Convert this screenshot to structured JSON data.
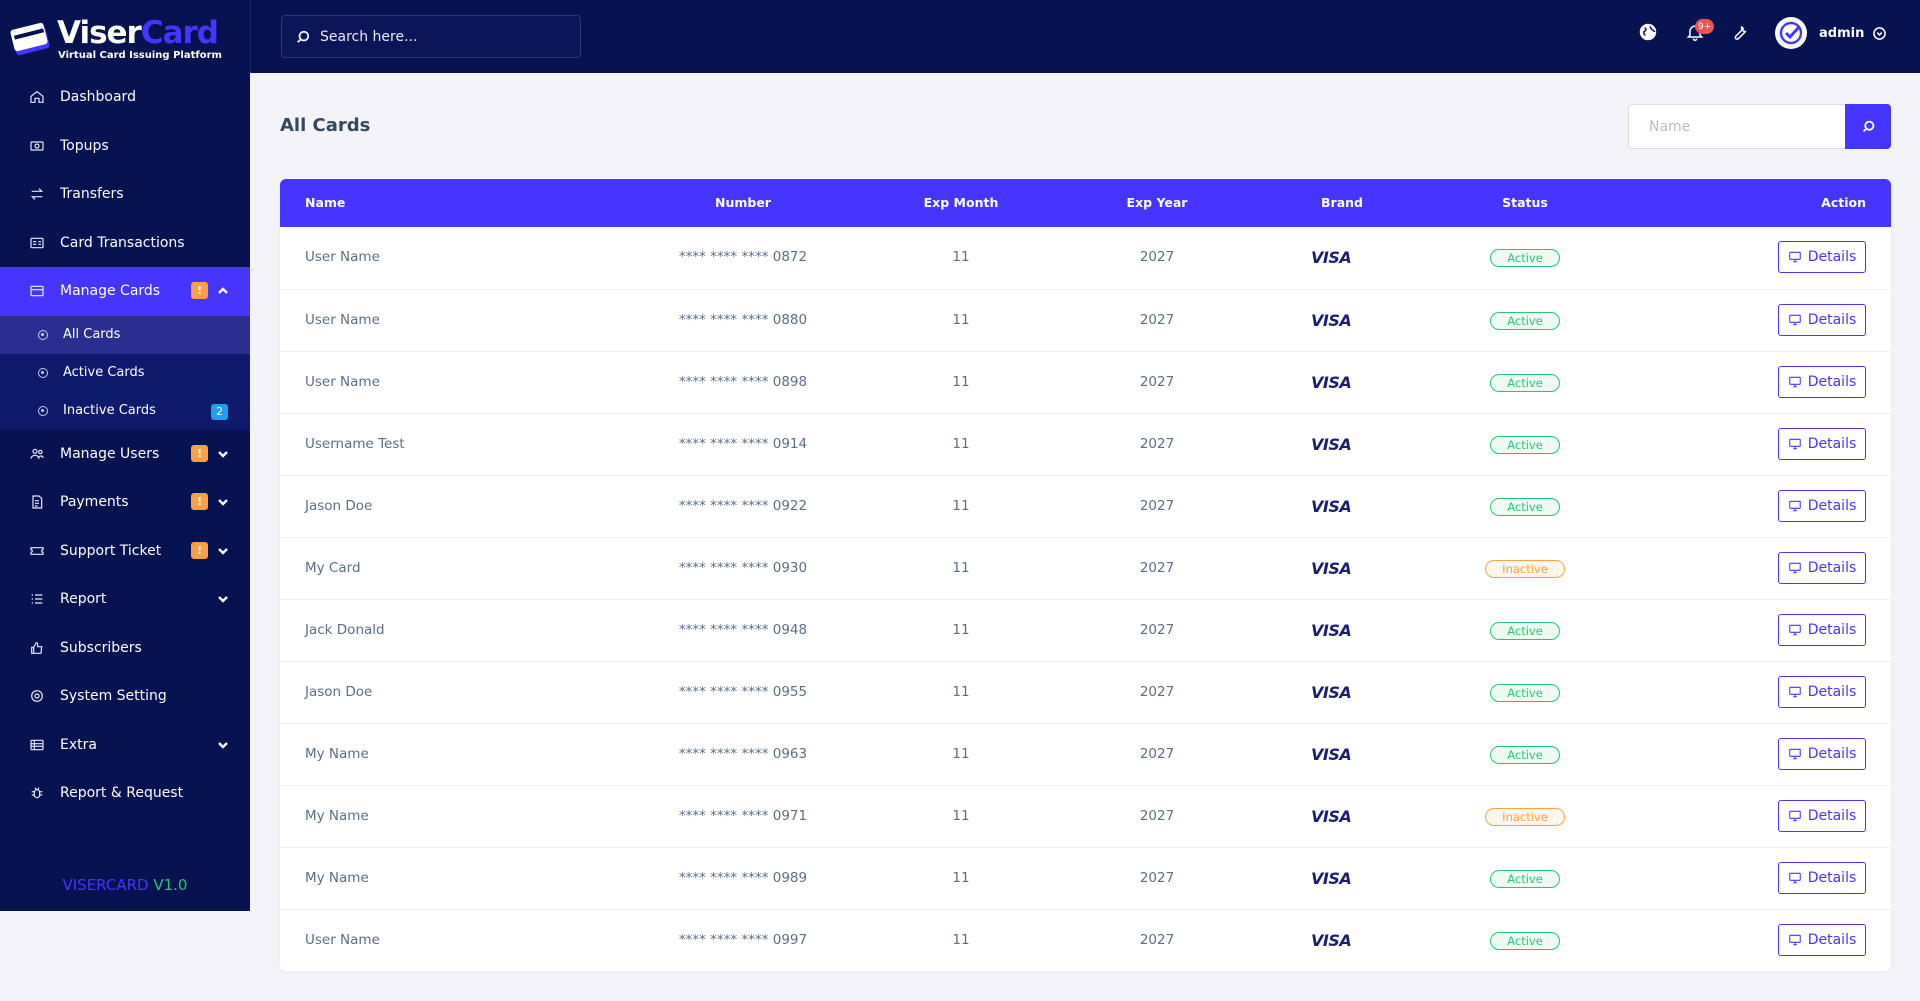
{
  "logo": {
    "brand_a": "Viser",
    "brand_b": "Card",
    "tagline": "Virtual Card Issuing Platform"
  },
  "sidebar": {
    "items": [
      {
        "label": "Dashboard",
        "icon": "home-icon"
      },
      {
        "label": "Topups",
        "icon": "money-icon"
      },
      {
        "label": "Transfers",
        "icon": "exchange-icon"
      },
      {
        "label": "Card Transactions",
        "icon": "card-list-icon"
      },
      {
        "label": "Manage Cards",
        "icon": "credit-card-icon",
        "badge": "!",
        "expanded": true
      },
      {
        "label": "Manage Users",
        "icon": "users-icon",
        "badge": "!"
      },
      {
        "label": "Payments",
        "icon": "invoice-icon",
        "badge": "!"
      },
      {
        "label": "Support Ticket",
        "icon": "ticket-icon",
        "badge": "!"
      },
      {
        "label": "Report",
        "icon": "list-icon"
      },
      {
        "label": "Subscribers",
        "icon": "thumbs-up-icon"
      },
      {
        "label": "System Setting",
        "icon": "settings-icon"
      },
      {
        "label": "Extra",
        "icon": "server-icon"
      },
      {
        "label": "Report & Request",
        "icon": "bug-icon"
      }
    ],
    "sub_items": [
      {
        "label": "All Cards"
      },
      {
        "label": "Active Cards"
      },
      {
        "label": "Inactive Cards",
        "badge": "2"
      }
    ],
    "version_a": "VISERCARD",
    "version_b": "V1.0"
  },
  "topbar": {
    "search_placeholder": "Search here...",
    "notification_count": "9+",
    "admin_name": "admin"
  },
  "page": {
    "title": "All Cards",
    "filter_placeholder": "Name"
  },
  "table": {
    "headers": [
      "Name",
      "Number",
      "Exp Month",
      "Exp Year",
      "Brand",
      "Status",
      "Action"
    ],
    "details_label": "Details",
    "rows": [
      {
        "name": "User Name",
        "number": "**** **** **** 0872",
        "month": "11",
        "year": "2027",
        "brand": "VISA",
        "status": "Active"
      },
      {
        "name": "User Name",
        "number": "**** **** **** 0880",
        "month": "11",
        "year": "2027",
        "brand": "VISA",
        "status": "Active"
      },
      {
        "name": "User Name",
        "number": "**** **** **** 0898",
        "month": "11",
        "year": "2027",
        "brand": "VISA",
        "status": "Active"
      },
      {
        "name": "Username Test",
        "number": "**** **** **** 0914",
        "month": "11",
        "year": "2027",
        "brand": "VISA",
        "status": "Active"
      },
      {
        "name": "Jason Doe",
        "number": "**** **** **** 0922",
        "month": "11",
        "year": "2027",
        "brand": "VISA",
        "status": "Active"
      },
      {
        "name": "My Card",
        "number": "**** **** **** 0930",
        "month": "11",
        "year": "2027",
        "brand": "VISA",
        "status": "Inactive"
      },
      {
        "name": "Jack Donald",
        "number": "**** **** **** 0948",
        "month": "11",
        "year": "2027",
        "brand": "VISA",
        "status": "Active"
      },
      {
        "name": "Jason Doe",
        "number": "**** **** **** 0955",
        "month": "11",
        "year": "2027",
        "brand": "VISA",
        "status": "Active"
      },
      {
        "name": "My Name",
        "number": "**** **** **** 0963",
        "month": "11",
        "year": "2027",
        "brand": "VISA",
        "status": "Active"
      },
      {
        "name": "My Name",
        "number": "**** **** **** 0971",
        "month": "11",
        "year": "2027",
        "brand": "VISA",
        "status": "Inactive"
      },
      {
        "name": "My Name",
        "number": "**** **** **** 0989",
        "month": "11",
        "year": "2027",
        "brand": "VISA",
        "status": "Active"
      },
      {
        "name": "User Name",
        "number": "**** **** **** 0997",
        "month": "11",
        "year": "2027",
        "brand": "VISA",
        "status": "Active"
      }
    ]
  },
  "colors": {
    "sidebar_bg": "#071251",
    "accent": "#4634ff",
    "active": "#28c76f",
    "inactive": "#ff9f43"
  }
}
